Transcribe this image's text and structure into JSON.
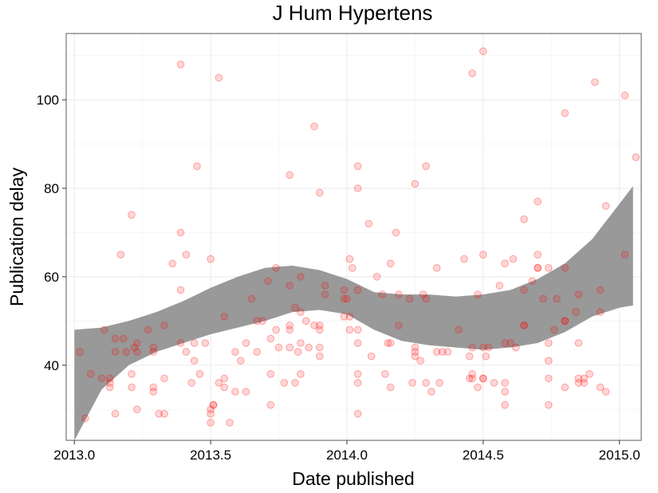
{
  "chart_data": {
    "type": "scatter",
    "title": "J Hum Hypertens",
    "xlabel": "Date published",
    "ylabel": "Publication delay",
    "xlim": [
      2012.97,
      2015.08
    ],
    "ylim": [
      23,
      115
    ],
    "x_ticks": [
      2013.0,
      2013.5,
      2014.0,
      2014.5,
      2015.0
    ],
    "x_tick_labels": [
      "2013.0",
      "2013.5",
      "2014.0",
      "2014.5",
      "2015.0"
    ],
    "y_ticks": [
      40,
      60,
      80,
      100
    ],
    "y_tick_labels": [
      "40",
      "60",
      "80",
      "100"
    ],
    "grid": true,
    "point_color": "#ff0000",
    "band_color": "#999999",
    "smooth_band": {
      "x": [
        2013.0,
        2013.1,
        2013.2,
        2013.3,
        2013.4,
        2013.5,
        2013.6,
        2013.7,
        2013.8,
        2013.9,
        2014.0,
        2014.1,
        2014.2,
        2014.3,
        2014.4,
        2014.5,
        2014.6,
        2014.7,
        2014.8,
        2014.9,
        2015.0,
        2015.05
      ],
      "upper": [
        48,
        48.5,
        50,
        52,
        54.5,
        57.5,
        60,
        62,
        62.5,
        61.5,
        59.5,
        56.5,
        56,
        56,
        55.5,
        56,
        57,
        59.5,
        63,
        68.5,
        76.5,
        80.5
      ],
      "lower": [
        23,
        34.5,
        40,
        43,
        45,
        47,
        48.5,
        50,
        52,
        52.5,
        51.5,
        48,
        45.5,
        44.5,
        44,
        43.5,
        44,
        45,
        47.5,
        51,
        53,
        53.5
      ]
    },
    "points": [
      [
        2013.02,
        43
      ],
      [
        2013.04,
        28
      ],
      [
        2013.06,
        38
      ],
      [
        2013.1,
        37
      ],
      [
        2013.11,
        48
      ],
      [
        2013.13,
        35
      ],
      [
        2013.13,
        36
      ],
      [
        2013.13,
        37
      ],
      [
        2013.15,
        29
      ],
      [
        2013.15,
        43
      ],
      [
        2013.15,
        46
      ],
      [
        2013.17,
        65
      ],
      [
        2013.18,
        46
      ],
      [
        2013.19,
        43
      ],
      [
        2013.21,
        74
      ],
      [
        2013.21,
        38
      ],
      [
        2013.21,
        35
      ],
      [
        2013.22,
        44
      ],
      [
        2013.23,
        45
      ],
      [
        2013.23,
        30
      ],
      [
        2013.23,
        43
      ],
      [
        2013.27,
        48
      ],
      [
        2013.29,
        43
      ],
      [
        2013.29,
        44
      ],
      [
        2013.29,
        34
      ],
      [
        2013.29,
        35
      ],
      [
        2013.31,
        29
      ],
      [
        2013.33,
        49
      ],
      [
        2013.33,
        29
      ],
      [
        2013.33,
        37
      ],
      [
        2013.36,
        63
      ],
      [
        2013.39,
        108
      ],
      [
        2013.39,
        57
      ],
      [
        2013.39,
        70
      ],
      [
        2013.39,
        45
      ],
      [
        2013.41,
        65
      ],
      [
        2013.41,
        43
      ],
      [
        2013.43,
        36
      ],
      [
        2013.44,
        41
      ],
      [
        2013.44,
        45
      ],
      [
        2013.45,
        85
      ],
      [
        2013.46,
        38
      ],
      [
        2013.48,
        45
      ],
      [
        2013.5,
        64
      ],
      [
        2013.5,
        30
      ],
      [
        2013.5,
        29
      ],
      [
        2013.5,
        27
      ],
      [
        2013.51,
        31
      ],
      [
        2013.51,
        31
      ],
      [
        2013.53,
        105
      ],
      [
        2013.53,
        36
      ],
      [
        2013.55,
        51
      ],
      [
        2013.55,
        37
      ],
      [
        2013.55,
        35
      ],
      [
        2013.57,
        27
      ],
      [
        2013.59,
        43
      ],
      [
        2013.59,
        34
      ],
      [
        2013.61,
        41
      ],
      [
        2013.63,
        45
      ],
      [
        2013.63,
        34
      ],
      [
        2013.65,
        55
      ],
      [
        2013.67,
        50
      ],
      [
        2013.67,
        43
      ],
      [
        2013.69,
        50
      ],
      [
        2013.71,
        59
      ],
      [
        2013.72,
        46
      ],
      [
        2013.72,
        38
      ],
      [
        2013.72,
        31
      ],
      [
        2013.74,
        62
      ],
      [
        2013.74,
        48
      ],
      [
        2013.75,
        44
      ],
      [
        2013.77,
        36
      ],
      [
        2013.79,
        83
      ],
      [
        2013.79,
        58
      ],
      [
        2013.79,
        49
      ],
      [
        2013.79,
        48
      ],
      [
        2013.79,
        44
      ],
      [
        2013.81,
        53
      ],
      [
        2013.81,
        36
      ],
      [
        2013.82,
        43
      ],
      [
        2013.83,
        60
      ],
      [
        2013.83,
        52
      ],
      [
        2013.83,
        45
      ],
      [
        2013.83,
        38
      ],
      [
        2013.85,
        50
      ],
      [
        2013.86,
        44
      ],
      [
        2013.88,
        94
      ],
      [
        2013.88,
        49
      ],
      [
        2013.9,
        79
      ],
      [
        2013.9,
        49
      ],
      [
        2013.9,
        48
      ],
      [
        2013.9,
        44
      ],
      [
        2013.9,
        42
      ],
      [
        2013.92,
        58
      ],
      [
        2013.92,
        56
      ],
      [
        2013.99,
        57
      ],
      [
        2013.99,
        55
      ],
      [
        2013.99,
        51
      ],
      [
        2014.0,
        55
      ],
      [
        2014.01,
        64
      ],
      [
        2014.01,
        51
      ],
      [
        2014.01,
        48
      ],
      [
        2014.02,
        62
      ],
      [
        2014.04,
        85
      ],
      [
        2014.04,
        80
      ],
      [
        2014.04,
        57
      ],
      [
        2014.04,
        48
      ],
      [
        2014.04,
        45
      ],
      [
        2014.04,
        38
      ],
      [
        2014.04,
        36
      ],
      [
        2014.04,
        29
      ],
      [
        2014.08,
        72
      ],
      [
        2014.09,
        42
      ],
      [
        2014.11,
        60
      ],
      [
        2014.13,
        56
      ],
      [
        2014.14,
        38
      ],
      [
        2014.15,
        45
      ],
      [
        2014.16,
        63
      ],
      [
        2014.16,
        45
      ],
      [
        2014.16,
        35
      ],
      [
        2014.18,
        70
      ],
      [
        2014.19,
        56
      ],
      [
        2014.19,
        49
      ],
      [
        2014.23,
        55
      ],
      [
        2014.24,
        36
      ],
      [
        2014.25,
        81
      ],
      [
        2014.25,
        44
      ],
      [
        2014.25,
        43
      ],
      [
        2014.25,
        42
      ],
      [
        2014.27,
        41
      ],
      [
        2014.28,
        56
      ],
      [
        2014.29,
        85
      ],
      [
        2014.29,
        55
      ],
      [
        2014.29,
        36
      ],
      [
        2014.31,
        34
      ],
      [
        2014.33,
        62
      ],
      [
        2014.33,
        43
      ],
      [
        2014.34,
        36
      ],
      [
        2014.35,
        43
      ],
      [
        2014.37,
        43
      ],
      [
        2014.41,
        48
      ],
      [
        2014.43,
        64
      ],
      [
        2014.45,
        42
      ],
      [
        2014.45,
        37
      ],
      [
        2014.46,
        106
      ],
      [
        2014.46,
        44
      ],
      [
        2014.46,
        38
      ],
      [
        2014.46,
        37
      ],
      [
        2014.48,
        56
      ],
      [
        2014.48,
        35
      ],
      [
        2014.5,
        111
      ],
      [
        2014.5,
        65
      ],
      [
        2014.5,
        44
      ],
      [
        2014.5,
        37
      ],
      [
        2014.5,
        37
      ],
      [
        2014.51,
        42
      ],
      [
        2014.52,
        44
      ],
      [
        2014.54,
        36
      ],
      [
        2014.56,
        58
      ],
      [
        2014.58,
        63
      ],
      [
        2014.58,
        45
      ],
      [
        2014.58,
        36
      ],
      [
        2014.58,
        34
      ],
      [
        2014.58,
        31
      ],
      [
        2014.6,
        45
      ],
      [
        2014.61,
        64
      ],
      [
        2014.62,
        44
      ],
      [
        2014.65,
        73
      ],
      [
        2014.65,
        57
      ],
      [
        2014.65,
        49
      ],
      [
        2014.65,
        49
      ],
      [
        2014.68,
        59
      ],
      [
        2014.7,
        77
      ],
      [
        2014.7,
        65
      ],
      [
        2014.7,
        62
      ],
      [
        2014.7,
        62
      ],
      [
        2014.72,
        55
      ],
      [
        2014.74,
        62
      ],
      [
        2014.74,
        45
      ],
      [
        2014.74,
        41
      ],
      [
        2014.74,
        37
      ],
      [
        2014.74,
        31
      ],
      [
        2014.76,
        48
      ],
      [
        2014.77,
        55
      ],
      [
        2014.8,
        97
      ],
      [
        2014.8,
        62
      ],
      [
        2014.8,
        50
      ],
      [
        2014.8,
        50
      ],
      [
        2014.8,
        35
      ],
      [
        2014.84,
        52
      ],
      [
        2014.85,
        56
      ],
      [
        2014.85,
        45
      ],
      [
        2014.85,
        37
      ],
      [
        2014.85,
        36
      ],
      [
        2014.87,
        37
      ],
      [
        2014.87,
        36
      ],
      [
        2014.89,
        38
      ],
      [
        2014.91,
        104
      ],
      [
        2014.93,
        52
      ],
      [
        2014.93,
        57
      ],
      [
        2014.93,
        35
      ],
      [
        2014.95,
        76
      ],
      [
        2014.95,
        34
      ],
      [
        2015.02,
        101
      ],
      [
        2015.02,
        65
      ],
      [
        2015.06,
        87
      ]
    ]
  }
}
